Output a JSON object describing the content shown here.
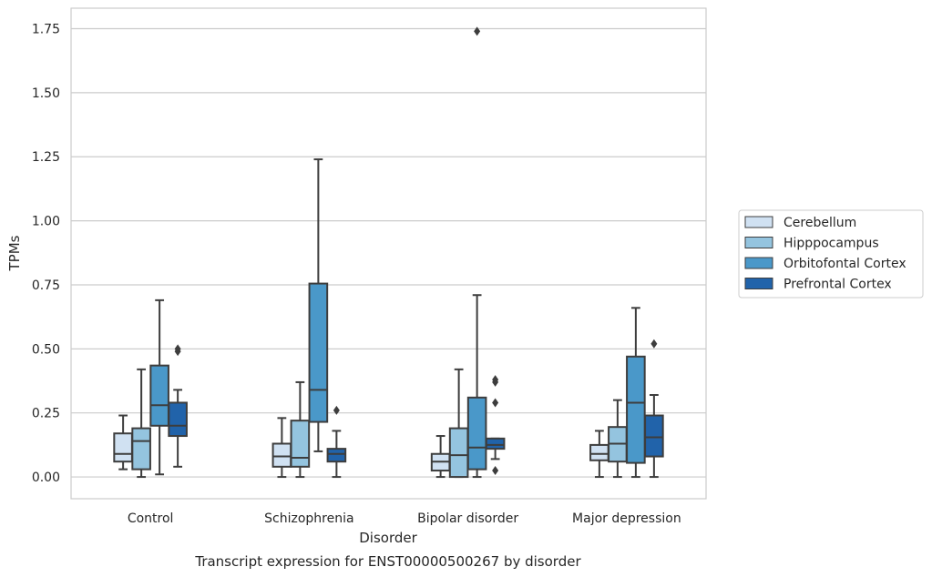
{
  "chart_data": {
    "type": "box",
    "caption": "Transcript expression for ENST00000500267 by disorder",
    "xlabel": "Disorder",
    "ylabel": "TPMs",
    "ylim": [
      -0.085,
      1.83
    ],
    "yticks": [
      "0.00",
      "0.25",
      "0.50",
      "0.75",
      "1.00",
      "1.25",
      "1.50",
      "1.75"
    ],
    "ytick_values": [
      0,
      0.25,
      0.5,
      0.75,
      1.0,
      1.25,
      1.5,
      1.75
    ],
    "grid": "horizontal",
    "legend_position": "right",
    "categories": [
      "Control",
      "Schizophrenia",
      "Bipolar disorder",
      "Major depression"
    ],
    "series": [
      {
        "name": "Cerebellum",
        "color": "#d0e1f2",
        "boxes": [
          {
            "whislo": 0.03,
            "q1": 0.06,
            "med": 0.09,
            "q3": 0.17,
            "whishi": 0.24,
            "fliers": []
          },
          {
            "whislo": 0.0,
            "q1": 0.04,
            "med": 0.08,
            "q3": 0.13,
            "whishi": 0.23,
            "fliers": []
          },
          {
            "whislo": 0.0,
            "q1": 0.025,
            "med": 0.06,
            "q3": 0.09,
            "whishi": 0.16,
            "fliers": []
          },
          {
            "whislo": 0.0,
            "q1": 0.065,
            "med": 0.09,
            "q3": 0.125,
            "whishi": 0.18,
            "fliers": []
          }
        ]
      },
      {
        "name": "Hipppocampus",
        "color": "#94c4df",
        "boxes": [
          {
            "whislo": 0.0,
            "q1": 0.03,
            "med": 0.14,
            "q3": 0.19,
            "whishi": 0.42,
            "fliers": []
          },
          {
            "whislo": 0.0,
            "q1": 0.04,
            "med": 0.075,
            "q3": 0.22,
            "whishi": 0.37,
            "fliers": []
          },
          {
            "whislo": 0.0,
            "q1": 0.0,
            "med": 0.085,
            "q3": 0.19,
            "whishi": 0.42,
            "fliers": []
          },
          {
            "whislo": 0.0,
            "q1": 0.06,
            "med": 0.13,
            "q3": 0.195,
            "whishi": 0.3,
            "fliers": []
          }
        ]
      },
      {
        "name": "Orbitofontal Cortex",
        "color": "#4a98c9",
        "boxes": [
          {
            "whislo": 0.01,
            "q1": 0.2,
            "med": 0.28,
            "q3": 0.435,
            "whishi": 0.69,
            "fliers": []
          },
          {
            "whislo": 0.1,
            "q1": 0.215,
            "med": 0.34,
            "q3": 0.755,
            "whishi": 1.24,
            "fliers": []
          },
          {
            "whislo": 0.0,
            "q1": 0.03,
            "med": 0.115,
            "q3": 0.31,
            "whishi": 0.71,
            "fliers": [
              1.74
            ]
          },
          {
            "whislo": 0.0,
            "q1": 0.055,
            "med": 0.29,
            "q3": 0.47,
            "whishi": 0.66,
            "fliers": []
          }
        ]
      },
      {
        "name": "Prefrontal Cortex",
        "color": "#2163aa",
        "boxes": [
          {
            "whislo": 0.04,
            "q1": 0.16,
            "med": 0.2,
            "q3": 0.29,
            "whishi": 0.34,
            "fliers": [
              0.49,
              0.5
            ]
          },
          {
            "whislo": 0.0,
            "q1": 0.06,
            "med": 0.09,
            "q3": 0.11,
            "whishi": 0.18,
            "fliers": [
              0.26
            ]
          },
          {
            "whislo": 0.07,
            "q1": 0.11,
            "med": 0.125,
            "q3": 0.15,
            "whishi": 0.15,
            "fliers": [
              0.37,
              0.38,
              0.29,
              0.025
            ]
          },
          {
            "whislo": 0.0,
            "q1": 0.08,
            "med": 0.155,
            "q3": 0.24,
            "whishi": 0.32,
            "fliers": [
              0.52
            ]
          }
        ]
      }
    ]
  }
}
